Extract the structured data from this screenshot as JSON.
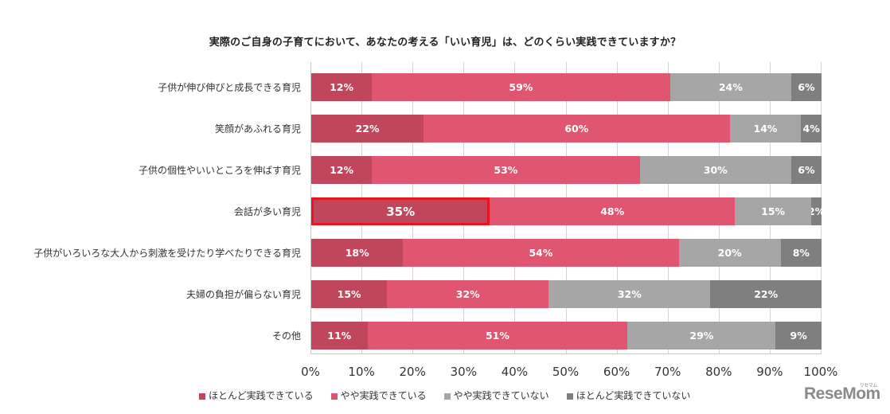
{
  "chart_data": {
    "type": "bar",
    "orientation": "horizontal",
    "stacked": true,
    "title": "実際のご自身の子育てにおいて、あなたの考える「いい育児」は、どのくらい実践できていますか？",
    "xlabel": "",
    "ylabel": "",
    "xlim": [
      0,
      100
    ],
    "x_ticks": [
      "0%",
      "10%",
      "20%",
      "30%",
      "40%",
      "50%",
      "60%",
      "70%",
      "80%",
      "90%",
      "100%"
    ],
    "grid": true,
    "legend_position": "bottom",
    "categories": [
      "子供が伸び伸びと成長できる育児",
      "笑顔があふれる育児",
      "子供の個性やいいところを伸ばす育児",
      "会話が多い育児",
      "子供がいろいろな大人から刺激を受けたり学べたりできる育児",
      "夫婦の負担が偏らない育児",
      "その他"
    ],
    "series": [
      {
        "name": "ほとんど実践できている",
        "color": "#c0465c",
        "values": [
          12,
          22,
          12,
          35,
          18,
          15,
          11
        ]
      },
      {
        "name": "やや実践できている",
        "color": "#e05570",
        "values": [
          59,
          60,
          53,
          48,
          54,
          32,
          51
        ]
      },
      {
        "name": "やや実践できていない",
        "color": "#a6a6a6",
        "values": [
          24,
          14,
          30,
          15,
          20,
          32,
          29
        ]
      },
      {
        "name": "ほとんど実践できていない",
        "color": "#7f7f7f",
        "values": [
          6,
          4,
          6,
          2,
          8,
          22,
          9
        ]
      }
    ],
    "annotations": [
      {
        "type": "highlight-box",
        "category": "会話が多い育児",
        "series": "ほとんど実践できている",
        "value": 35,
        "color": "#e8141e"
      }
    ]
  },
  "labels": {
    "title": "実際のご自身の子育てにおいて、あなたの考える「いい育児」は、どのくらい実践できていますか？",
    "categories": [
      "子供が伸び伸びと成長できる育児",
      "笑顔があふれる育児",
      "子供の個性やいいところを伸ばす育児",
      "会話が多い育児",
      "子供がいろいろな大人から刺激を受けたり学べたりできる育児",
      "夫婦の負担が偏らない育児",
      "その他"
    ],
    "x_ticks": [
      "0%",
      "10%",
      "20%",
      "30%",
      "40%",
      "50%",
      "60%",
      "70%",
      "80%",
      "90%",
      "100%"
    ],
    "legend": [
      "ほとんど実践できている",
      "やや実践できている",
      "やや実践できていない",
      "ほとんど実践できていない"
    ],
    "logo": "ReseMom",
    "logo_small": "リセマム"
  }
}
